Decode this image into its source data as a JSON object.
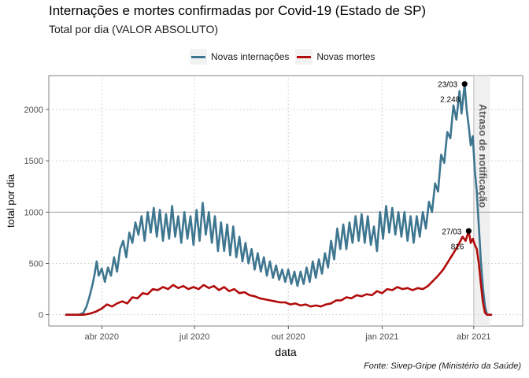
{
  "title": "Internações e mortes confirmadas por Covid-19 (Estado de SP)",
  "subtitle": "Total por dia (VALOR ABSOLUTO)",
  "caption": "Fonte: Sivep-Gripe (Ministério da Saúde)",
  "legend": [
    {
      "label": "Novas internações",
      "color": "#3e7690"
    },
    {
      "label": "Novas mortes",
      "color": "#b20b0b"
    }
  ],
  "chart_data": {
    "type": "line",
    "xlabel": "data",
    "ylabel": "total por dia",
    "x_ticks": [
      {
        "label": "abr 2020",
        "date": "2020-04-01"
      },
      {
        "label": "jul 2020",
        "date": "2020-07-01"
      },
      {
        "label": "out 2020",
        "date": "2020-10-01"
      },
      {
        "label": "jan 2021",
        "date": "2021-01-01"
      },
      {
        "label": "abr 2021",
        "date": "2021-04-01"
      }
    ],
    "y_ticks": [
      "0",
      "500",
      "1000",
      "1500",
      "2000"
    ],
    "xlim": [
      "2020-02-09",
      "2021-05-19"
    ],
    "ylim": [
      -110,
      2330
    ],
    "grid": "dotted",
    "reference_line_y": 1000,
    "shaded_region": {
      "from": "2021-04-01",
      "to": "2021-04-17",
      "label": "Atraso de notificação"
    },
    "series": [
      {
        "name": "Novas internações",
        "color": "#3e7690",
        "points": [
          [
            "2020-02-26",
            0
          ],
          [
            "2020-03-10",
            0
          ],
          [
            "2020-03-14",
            20
          ],
          [
            "2020-03-17",
            80
          ],
          [
            "2020-03-20",
            180
          ],
          [
            "2020-03-23",
            300
          ],
          [
            "2020-03-25",
            400
          ],
          [
            "2020-03-27",
            520
          ],
          [
            "2020-03-29",
            380
          ],
          [
            "2020-04-01",
            450
          ],
          [
            "2020-04-04",
            320
          ],
          [
            "2020-04-07",
            460
          ],
          [
            "2020-04-10",
            380
          ],
          [
            "2020-04-13",
            560
          ],
          [
            "2020-04-16",
            420
          ],
          [
            "2020-04-19",
            640
          ],
          [
            "2020-04-22",
            720
          ],
          [
            "2020-04-25",
            560
          ],
          [
            "2020-04-28",
            800
          ],
          [
            "2020-05-01",
            700
          ],
          [
            "2020-05-04",
            900
          ],
          [
            "2020-05-07",
            780
          ],
          [
            "2020-05-10",
            960
          ],
          [
            "2020-05-13",
            720
          ],
          [
            "2020-05-16",
            1000
          ],
          [
            "2020-05-19",
            800
          ],
          [
            "2020-05-22",
            1040
          ],
          [
            "2020-05-25",
            760
          ],
          [
            "2020-05-28",
            1020
          ],
          [
            "2020-05-31",
            720
          ],
          [
            "2020-06-03",
            980
          ],
          [
            "2020-06-06",
            740
          ],
          [
            "2020-06-09",
            1060
          ],
          [
            "2020-06-12",
            760
          ],
          [
            "2020-06-15",
            960
          ],
          [
            "2020-06-18",
            700
          ],
          [
            "2020-06-21",
            1000
          ],
          [
            "2020-06-24",
            740
          ],
          [
            "2020-06-27",
            960
          ],
          [
            "2020-06-30",
            680
          ],
          [
            "2020-07-03",
            1020
          ],
          [
            "2020-07-06",
            720
          ],
          [
            "2020-07-09",
            1090
          ],
          [
            "2020-07-12",
            780
          ],
          [
            "2020-07-15",
            1000
          ],
          [
            "2020-07-18",
            700
          ],
          [
            "2020-07-21",
            960
          ],
          [
            "2020-07-24",
            620
          ],
          [
            "2020-07-27",
            900
          ],
          [
            "2020-07-30",
            620
          ],
          [
            "2020-08-02",
            880
          ],
          [
            "2020-08-05",
            580
          ],
          [
            "2020-08-08",
            860
          ],
          [
            "2020-08-11",
            560
          ],
          [
            "2020-08-14",
            760
          ],
          [
            "2020-08-17",
            520
          ],
          [
            "2020-08-20",
            700
          ],
          [
            "2020-08-23",
            500
          ],
          [
            "2020-08-26",
            640
          ],
          [
            "2020-08-29",
            440
          ],
          [
            "2020-09-01",
            600
          ],
          [
            "2020-09-04",
            420
          ],
          [
            "2020-09-07",
            560
          ],
          [
            "2020-09-10",
            380
          ],
          [
            "2020-09-13",
            520
          ],
          [
            "2020-09-16",
            360
          ],
          [
            "2020-09-19",
            480
          ],
          [
            "2020-09-22",
            340
          ],
          [
            "2020-09-25",
            440
          ],
          [
            "2020-09-28",
            320
          ],
          [
            "2020-10-01",
            440
          ],
          [
            "2020-10-04",
            300
          ],
          [
            "2020-10-07",
            420
          ],
          [
            "2020-10-10",
            280
          ],
          [
            "2020-10-13",
            420
          ],
          [
            "2020-10-16",
            300
          ],
          [
            "2020-10-19",
            460
          ],
          [
            "2020-10-22",
            320
          ],
          [
            "2020-10-25",
            520
          ],
          [
            "2020-10-28",
            360
          ],
          [
            "2020-10-31",
            540
          ],
          [
            "2020-11-03",
            400
          ],
          [
            "2020-11-06",
            600
          ],
          [
            "2020-11-09",
            460
          ],
          [
            "2020-11-12",
            720
          ],
          [
            "2020-11-15",
            540
          ],
          [
            "2020-11-18",
            840
          ],
          [
            "2020-11-21",
            640
          ],
          [
            "2020-11-24",
            880
          ],
          [
            "2020-11-27",
            640
          ],
          [
            "2020-11-30",
            900
          ],
          [
            "2020-12-03",
            700
          ],
          [
            "2020-12-06",
            960
          ],
          [
            "2020-12-09",
            720
          ],
          [
            "2020-12-12",
            980
          ],
          [
            "2020-12-15",
            700
          ],
          [
            "2020-12-18",
            960
          ],
          [
            "2020-12-21",
            680
          ],
          [
            "2020-12-24",
            860
          ],
          [
            "2020-12-27",
            620
          ],
          [
            "2020-12-30",
            1000
          ],
          [
            "2021-01-02",
            740
          ],
          [
            "2021-01-05",
            1060
          ],
          [
            "2021-01-08",
            800
          ],
          [
            "2021-01-11",
            1040
          ],
          [
            "2021-01-14",
            780
          ],
          [
            "2021-01-17",
            1000
          ],
          [
            "2021-01-20",
            760
          ],
          [
            "2021-01-23",
            1000
          ],
          [
            "2021-01-26",
            720
          ],
          [
            "2021-01-29",
            960
          ],
          [
            "2021-02-01",
            700
          ],
          [
            "2021-02-04",
            960
          ],
          [
            "2021-02-07",
            760
          ],
          [
            "2021-02-10",
            1000
          ],
          [
            "2021-02-13",
            840
          ],
          [
            "2021-02-16",
            1100
          ],
          [
            "2021-02-19",
            1000
          ],
          [
            "2021-02-22",
            1280
          ],
          [
            "2021-02-25",
            1200
          ],
          [
            "2021-02-28",
            1560
          ],
          [
            "2021-03-03",
            1480
          ],
          [
            "2021-03-06",
            1780
          ],
          [
            "2021-03-09",
            1720
          ],
          [
            "2021-03-12",
            2040
          ],
          [
            "2021-03-15",
            1900
          ],
          [
            "2021-03-18",
            2180
          ],
          [
            "2021-03-20",
            1960
          ],
          [
            "2021-03-23",
            2248
          ],
          [
            "2021-03-25",
            2000
          ],
          [
            "2021-03-27",
            1840
          ],
          [
            "2021-03-29",
            1650
          ],
          [
            "2021-03-31",
            1740
          ],
          [
            "2021-04-02",
            1400
          ],
          [
            "2021-04-04",
            1200
          ],
          [
            "2021-04-06",
            860
          ],
          [
            "2021-04-08",
            520
          ],
          [
            "2021-04-10",
            260
          ],
          [
            "2021-04-12",
            80
          ],
          [
            "2021-04-14",
            0
          ],
          [
            "2021-04-18",
            0
          ]
        ]
      },
      {
        "name": "Novas mortes",
        "color": "#b20b0b",
        "points": [
          [
            "2020-02-26",
            0
          ],
          [
            "2020-03-14",
            0
          ],
          [
            "2020-03-20",
            10
          ],
          [
            "2020-03-26",
            30
          ],
          [
            "2020-04-01",
            60
          ],
          [
            "2020-04-06",
            100
          ],
          [
            "2020-04-11",
            80
          ],
          [
            "2020-04-16",
            110
          ],
          [
            "2020-04-21",
            130
          ],
          [
            "2020-04-26",
            110
          ],
          [
            "2020-05-01",
            170
          ],
          [
            "2020-05-06",
            160
          ],
          [
            "2020-05-11",
            210
          ],
          [
            "2020-05-16",
            200
          ],
          [
            "2020-05-21",
            250
          ],
          [
            "2020-05-26",
            240
          ],
          [
            "2020-05-31",
            270
          ],
          [
            "2020-06-05",
            250
          ],
          [
            "2020-06-10",
            290
          ],
          [
            "2020-06-15",
            260
          ],
          [
            "2020-06-20",
            280
          ],
          [
            "2020-06-25",
            250
          ],
          [
            "2020-06-30",
            270
          ],
          [
            "2020-07-05",
            250
          ],
          [
            "2020-07-10",
            290
          ],
          [
            "2020-07-15",
            260
          ],
          [
            "2020-07-20",
            280
          ],
          [
            "2020-07-25",
            240
          ],
          [
            "2020-07-30",
            270
          ],
          [
            "2020-08-04",
            230
          ],
          [
            "2020-08-09",
            250
          ],
          [
            "2020-08-14",
            210
          ],
          [
            "2020-08-19",
            220
          ],
          [
            "2020-08-24",
            190
          ],
          [
            "2020-08-29",
            180
          ],
          [
            "2020-09-03",
            160
          ],
          [
            "2020-09-08",
            150
          ],
          [
            "2020-09-13",
            140
          ],
          [
            "2020-09-18",
            130
          ],
          [
            "2020-09-23",
            120
          ],
          [
            "2020-09-28",
            120
          ],
          [
            "2020-10-03",
            100
          ],
          [
            "2020-10-08",
            110
          ],
          [
            "2020-10-13",
            90
          ],
          [
            "2020-10-18",
            100
          ],
          [
            "2020-10-23",
            80
          ],
          [
            "2020-10-28",
            90
          ],
          [
            "2020-11-02",
            80
          ],
          [
            "2020-11-07",
            100
          ],
          [
            "2020-11-12",
            110
          ],
          [
            "2020-11-17",
            140
          ],
          [
            "2020-11-22",
            140
          ],
          [
            "2020-11-27",
            170
          ],
          [
            "2020-12-02",
            160
          ],
          [
            "2020-12-07",
            190
          ],
          [
            "2020-12-12",
            180
          ],
          [
            "2020-12-17",
            200
          ],
          [
            "2020-12-22",
            190
          ],
          [
            "2020-12-27",
            230
          ],
          [
            "2021-01-01",
            210
          ],
          [
            "2021-01-06",
            250
          ],
          [
            "2021-01-11",
            240
          ],
          [
            "2021-01-16",
            270
          ],
          [
            "2021-01-21",
            250
          ],
          [
            "2021-01-26",
            260
          ],
          [
            "2021-01-31",
            240
          ],
          [
            "2021-02-05",
            260
          ],
          [
            "2021-02-10",
            250
          ],
          [
            "2021-02-15",
            280
          ],
          [
            "2021-02-20",
            330
          ],
          [
            "2021-02-25",
            380
          ],
          [
            "2021-03-02",
            440
          ],
          [
            "2021-03-07",
            520
          ],
          [
            "2021-03-12",
            600
          ],
          [
            "2021-03-17",
            680
          ],
          [
            "2021-03-21",
            760
          ],
          [
            "2021-03-24",
            720
          ],
          [
            "2021-03-27",
            816
          ],
          [
            "2021-03-29",
            700
          ],
          [
            "2021-03-31",
            740
          ],
          [
            "2021-04-02",
            680
          ],
          [
            "2021-04-04",
            640
          ],
          [
            "2021-04-06",
            500
          ],
          [
            "2021-04-08",
            300
          ],
          [
            "2021-04-10",
            120
          ],
          [
            "2021-04-12",
            20
          ],
          [
            "2021-04-14",
            0
          ],
          [
            "2021-04-18",
            0
          ]
        ]
      }
    ],
    "annotations": [
      {
        "date": "2021-03-23",
        "value": 2248,
        "date_label": "23/03",
        "value_label": "2.248",
        "series": "Novas internações"
      },
      {
        "date": "2021-03-27",
        "value": 816,
        "date_label": "27/03",
        "value_label": "816",
        "series": "Novas mortes"
      }
    ]
  }
}
